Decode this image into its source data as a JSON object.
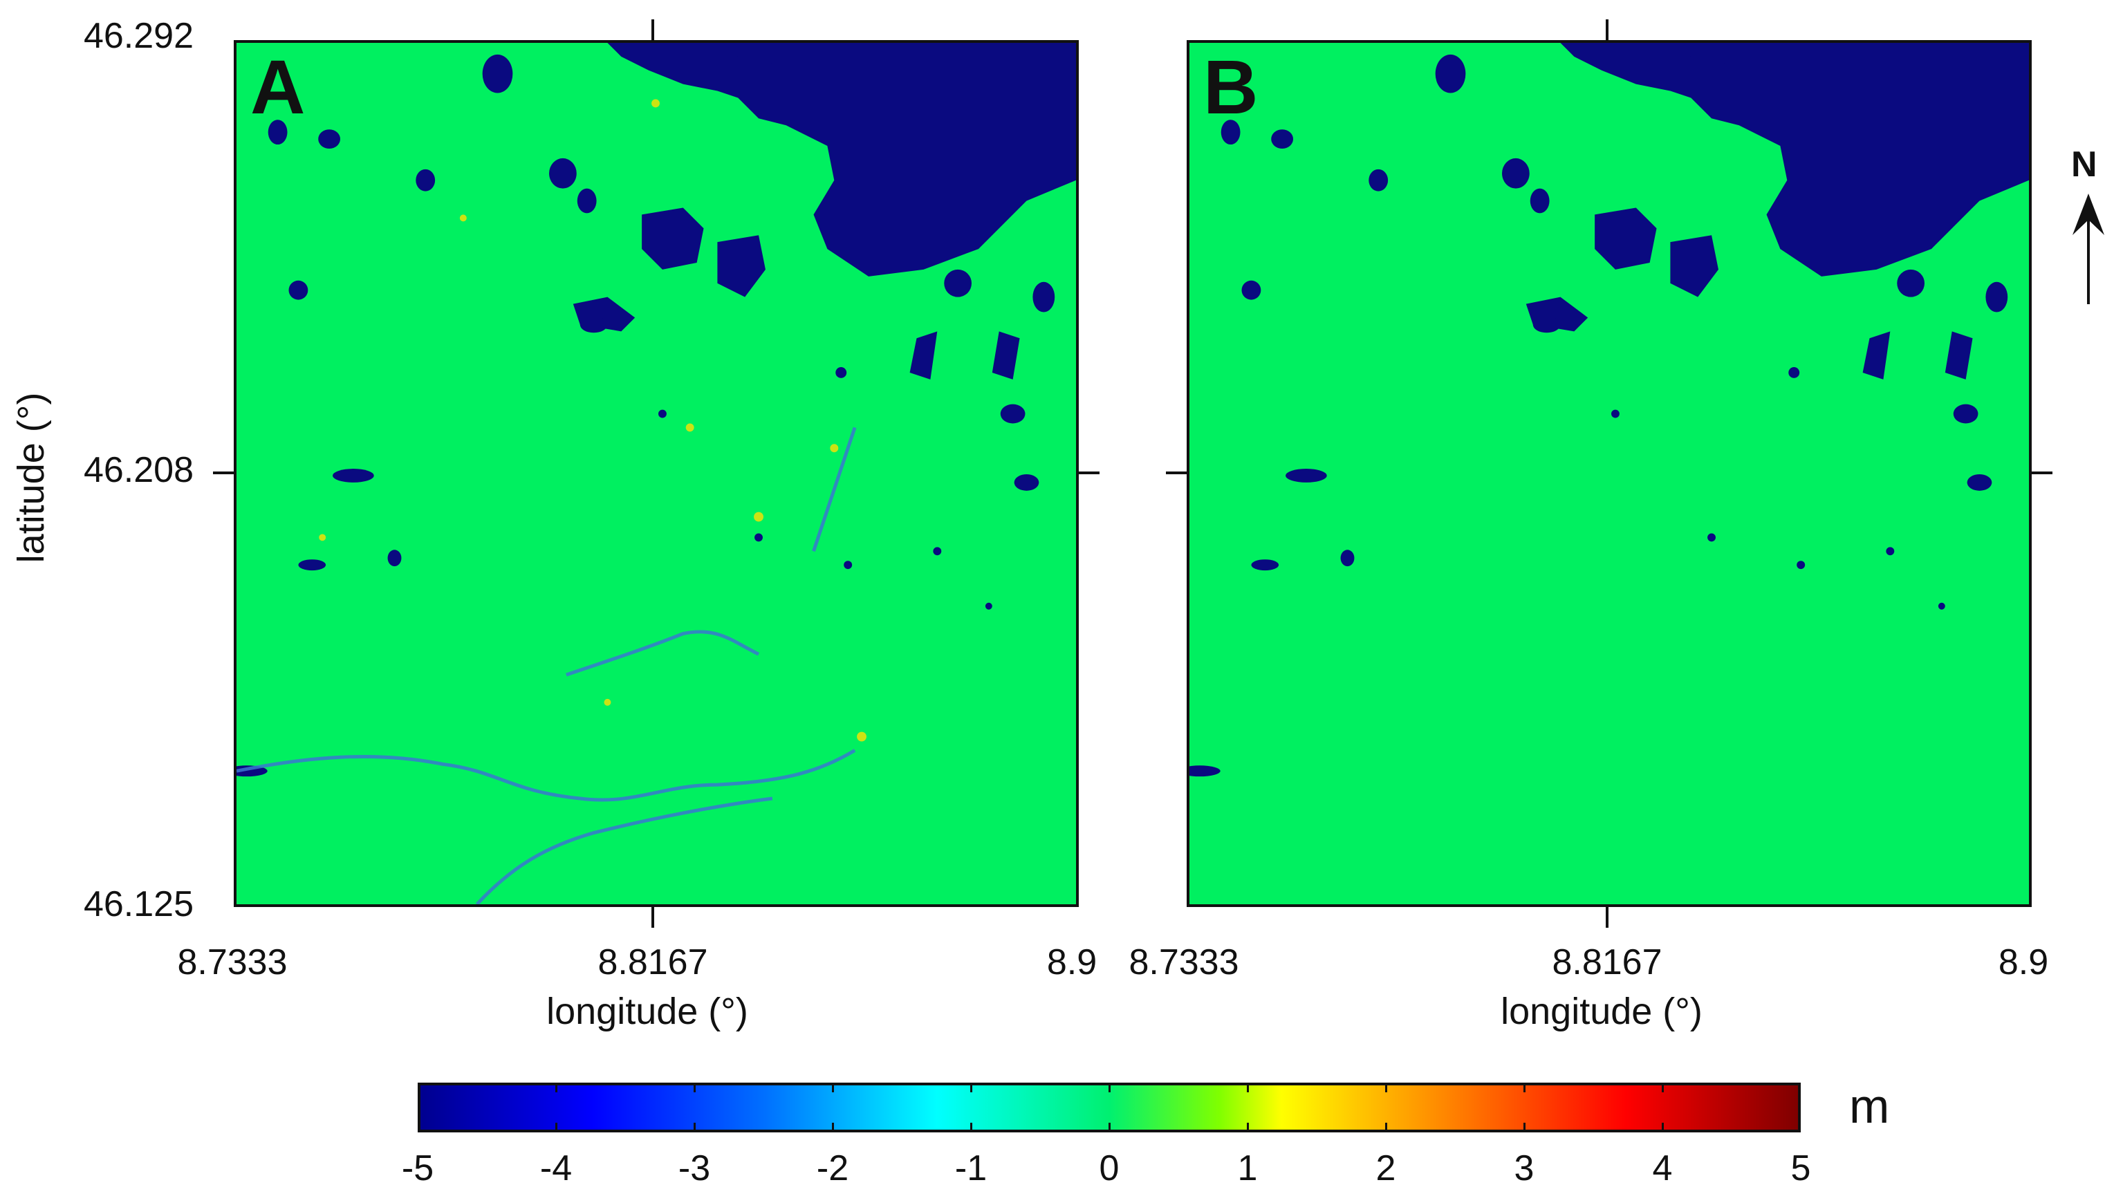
{
  "panels": [
    {
      "id": "A",
      "label": "A"
    },
    {
      "id": "B",
      "label": "B"
    }
  ],
  "axes": {
    "xlabel": "longitude (°)",
    "ylabel": "latitude (°)",
    "xticks": [
      "8.7333",
      "8.8167",
      "8.9"
    ],
    "yticks": [
      "46.292",
      "46.208",
      "46.125"
    ]
  },
  "colorbar": {
    "ticks": [
      "-5",
      "-4",
      "-3",
      "-2",
      "-1",
      "0",
      "1",
      "2",
      "3",
      "4",
      "5"
    ],
    "unit": "m",
    "colors": [
      "#00008f",
      "#0000ff",
      "#0070ff",
      "#00ffff",
      "#00f070",
      "#ffff00",
      "#ff8000",
      "#ff0000",
      "#800000"
    ]
  },
  "north_arrow": {
    "label": "N",
    "icon": "north-arrow-icon"
  },
  "map_colors": {
    "background": "#00f060",
    "water": "#0a0a80"
  }
}
